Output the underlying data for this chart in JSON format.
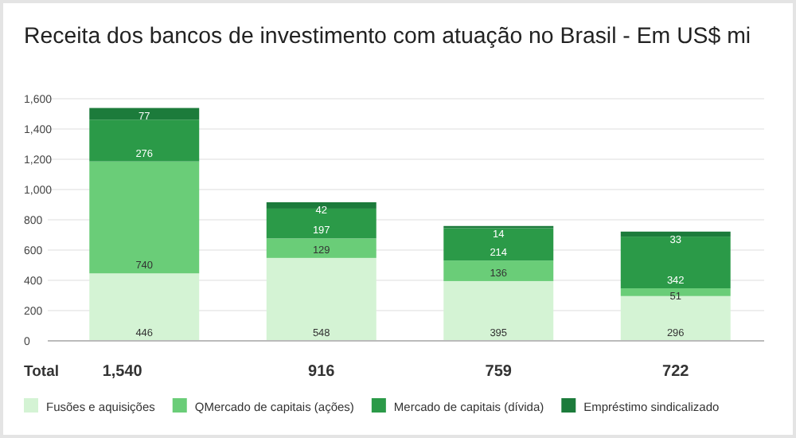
{
  "chart_data": {
    "type": "bar",
    "title": "Receita dos bancos de investimento com atuação no Brasil - Em US$ mi",
    "stacked": true,
    "categories": [
      null,
      null,
      null,
      null
    ],
    "series": [
      {
        "name": "Fusões e aquisições",
        "color": "#d4f3d4",
        "values": [
          446,
          548,
          395,
          296
        ]
      },
      {
        "name": "QMercado de capitais (ações)",
        "color": "#6acd78",
        "values": [
          740,
          129,
          136,
          51
        ]
      },
      {
        "name": "Mercado de capitais (dívida)",
        "color": "#2b9a48",
        "values": [
          276,
          197,
          214,
          342
        ]
      },
      {
        "name": "Empréstimo sindicalizado",
        "color": "#1c7b3b",
        "values": [
          77,
          42,
          14,
          33
        ]
      }
    ],
    "ylim": [
      0,
      1600
    ],
    "yticks": [
      0,
      {
        "value": 200,
        "label": "200"
      },
      {
        "value": 400,
        "label": "400"
      },
      {
        "value": 600,
        "label": "600"
      },
      {
        "value": 800,
        "label": "800"
      },
      {
        "value": 1000,
        "label": "1,000"
      },
      {
        "value": 1200,
        "label": "1,200"
      },
      {
        "value": 1400,
        "label": "1,400"
      },
      {
        "value": 1600,
        "label": "1,600"
      }
    ],
    "grid": "y",
    "legend": "bottom",
    "data_labels": true,
    "totals": [
      "1,540",
      "916",
      "759",
      "722"
    ],
    "annotations": [
      "Total"
    ]
  }
}
